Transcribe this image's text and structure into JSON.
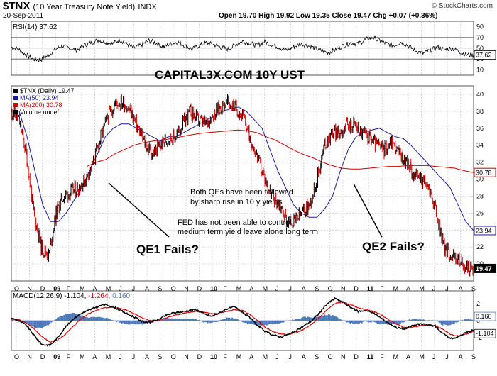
{
  "header": {
    "symbol": "$TNX",
    "description": "(10 Year Treasury Note Yield)",
    "exchange": "INDX",
    "date": "20-Sep-2011",
    "ohlc": "Open 19.70  High 19.92  Low 19.35  Close 19.47  Chg +0.07 (+0.36%)",
    "copyright": "© StockCharts.com"
  },
  "colors": {
    "price": "#000000",
    "up_bar": "#000000",
    "down_bar": "#dd0000",
    "ma50": "#1a1a9a",
    "ma200": "#cc0000",
    "macd": "#000000",
    "signal": "#dd0000",
    "histogram": "#4a78b8",
    "grid": "#c8c8d8",
    "price_label_bg": "#000000",
    "ma50_label_border": "#1a1a9a",
    "ma200_label_border": "#cc0000"
  },
  "chart_data": [
    {
      "type": "line",
      "panel": "RSI",
      "title": "RSI(14) 37.62",
      "ylim": [
        0,
        100
      ],
      "yticks": [
        10,
        30,
        50,
        70,
        90
      ],
      "reference_lines": [
        30,
        70
      ],
      "current_value": "37.62",
      "series": [
        {
          "name": "RSI(14)",
          "values": [
            52,
            48,
            38,
            30,
            28,
            36,
            47,
            55,
            50,
            46,
            55,
            60,
            65,
            62,
            58,
            66,
            58,
            50,
            56,
            64,
            60,
            52,
            58,
            62,
            55,
            48,
            55,
            60,
            57,
            52,
            48,
            56,
            63,
            60,
            55,
            62,
            57,
            52,
            46,
            52,
            58,
            55,
            50,
            45,
            42,
            48,
            55,
            60,
            58,
            66,
            70,
            64,
            58,
            55,
            62,
            54,
            45,
            40,
            46,
            52,
            47,
            50,
            44,
            38,
            37
          ]
        }
      ]
    },
    {
      "type": "line",
      "panel": "price",
      "title": "$TNX (Daily) 19.47",
      "watermark": "CAPITAL3X.COM 10Y UST",
      "ylim": [
        18,
        41
      ],
      "yticks": [
        20,
        22,
        24,
        26,
        28,
        30,
        32,
        34,
        36,
        38,
        40
      ],
      "x_tick_labels": [
        "O",
        "N",
        "D",
        "09",
        "F",
        "M",
        "A",
        "M",
        "J",
        "J",
        "A",
        "S",
        "O",
        "N",
        "D",
        "10",
        "F",
        "M",
        "A",
        "M",
        "J",
        "J",
        "A",
        "S",
        "O",
        "N",
        "D",
        "11",
        "F",
        "M",
        "A",
        "M",
        "J",
        "J",
        "A",
        "S"
      ],
      "series": [
        {
          "name": "$TNX (Daily) 19.47",
          "values": [
            38,
            37,
            33,
            26,
            22,
            21,
            26,
            28,
            28.5,
            29,
            30,
            32,
            35,
            37.5,
            39,
            39,
            38,
            36,
            34,
            33,
            34,
            34.8,
            35,
            36.5,
            38,
            37,
            36.5,
            37.5,
            38.5,
            39,
            38.5,
            37.5,
            35,
            32.5,
            30,
            28,
            27,
            25,
            25,
            26,
            27,
            30,
            34,
            35.5,
            35.5,
            36.3,
            36.5,
            35.5,
            35,
            34,
            33.5,
            34.5,
            33,
            32,
            30.5,
            30,
            29,
            26,
            22,
            21,
            20.5,
            19.5,
            19.47
          ]
        },
        {
          "name": "MA(50) 23.94",
          "values": [
            null,
            38,
            35,
            31,
            27,
            25,
            25,
            26,
            27.5,
            29,
            31,
            33,
            35,
            36,
            36.5,
            36.5,
            36,
            35.5,
            35,
            34.5,
            35,
            35,
            35.5,
            36,
            36.5,
            37,
            37.5,
            38,
            38.3,
            38.5,
            38,
            37,
            36,
            33.5,
            31,
            29,
            27,
            26,
            25.5,
            25.5,
            26.5,
            28,
            31,
            33.5,
            35,
            35.5,
            35.8,
            36,
            35.5,
            35,
            34.8,
            34,
            33,
            32,
            31,
            30,
            29,
            27,
            25,
            23.94
          ]
        },
        {
          "name": "MA(200) 30.78",
          "values": [
            null,
            null,
            null,
            null,
            null,
            null,
            null,
            null,
            31.5,
            32,
            32.3,
            33,
            33.5,
            34,
            34.3,
            34.5,
            34.6,
            34.8,
            35,
            35.2,
            35.4,
            35.5,
            35.6,
            35.7,
            35.8,
            35.7,
            35.5,
            35,
            34.6,
            34,
            33.4,
            32.9,
            32.5,
            32,
            31.6,
            31.3,
            31.2,
            31.2,
            31.3,
            31.4,
            31.5,
            31.5,
            31.6,
            31.6,
            31.6,
            31.5,
            31.4,
            31.3,
            31,
            30.78
          ]
        }
      ],
      "legend": [
        "$TNX (Daily) 19.47",
        "MA(50) 23.94",
        "MA(200) 30.78",
        "Volume undef"
      ],
      "value_labels": [
        "30.78",
        "23.94",
        "19.47"
      ],
      "annotations": [
        {
          "text": "Both QEs have been followed"
        },
        {
          "text": "by sharp rise in 10 y yields"
        },
        {
          "text": "FED has not been able to control"
        },
        {
          "text": "medium term yield leave alone long term"
        },
        {
          "text": "QE1 Fails?"
        },
        {
          "text": "QE2 Fails?"
        }
      ]
    },
    {
      "type": "line",
      "panel": "MACD",
      "title": "MACD(12,26,9) -1.104, -1.264, 0.160",
      "ylim": [
        -3.5,
        3.5
      ],
      "yticks": [
        -2,
        0,
        2
      ],
      "value_labels": [
        "0.160",
        "-1.104"
      ],
      "x_tick_labels": [
        "O",
        "N",
        "D",
        "09",
        "F",
        "M",
        "A",
        "M",
        "J",
        "J",
        "A",
        "S",
        "O",
        "N",
        "D",
        "10",
        "F",
        "M",
        "A",
        "M",
        "J",
        "J",
        "A",
        "S",
        "O",
        "N",
        "D",
        "11",
        "F",
        "M",
        "A",
        "M",
        "J",
        "J",
        "A",
        "S"
      ],
      "series": [
        {
          "name": "MACD",
          "values": [
            0.3,
            0,
            -0.6,
            -1.8,
            -2.8,
            -2.9,
            -2,
            -0.8,
            0.2,
            0.8,
            1.2,
            1.6,
            1.9,
            1.7,
            1.3,
            0.8,
            0.4,
            -0.1,
            -0.2,
            0.1,
            0.6,
            0.9,
            1,
            1.2,
            1.3,
            0.8,
            0.5,
            0.9,
            1.4,
            1.6,
            1,
            0.3,
            -0.6,
            -1.3,
            -1.7,
            -1.9,
            -1.6,
            -1.2,
            -0.6,
            0,
            0.9,
            2,
            2.6,
            2.2,
            1.6,
            1.1,
            1.2,
            0.9,
            0.3,
            -0.3,
            -0.8,
            -1,
            -0.6,
            -0.4,
            -0.5,
            -0.6,
            -1.5,
            -2.1,
            -1.9,
            -1.4,
            -1.104
          ]
        },
        {
          "name": "Signal",
          "values": [
            0.2,
            0.1,
            -0.3,
            -1,
            -1.9,
            -2.5,
            -2.3,
            -1.6,
            -0.7,
            0.2,
            0.8,
            1.2,
            1.5,
            1.6,
            1.5,
            1.2,
            0.8,
            0.3,
            0,
            0,
            0.3,
            0.6,
            0.8,
            1,
            1.1,
            1,
            0.8,
            0.9,
            1.1,
            1.3,
            1.2,
            0.7,
            0,
            -0.8,
            -1.3,
            -1.6,
            -1.6,
            -1.4,
            -1,
            -0.4,
            0.4,
            1.3,
            2,
            2.2,
            1.9,
            1.5,
            1.3,
            1.1,
            0.7,
            0.1,
            -0.4,
            -0.8,
            -0.8,
            -0.6,
            -0.5,
            -0.6,
            -1,
            -1.6,
            -1.8,
            -1.6,
            -1.264
          ]
        }
      ],
      "histogram": [
        0.1,
        -0.1,
        -0.3,
        -0.8,
        -0.9,
        -0.4,
        0.3,
        0.8,
        0.9,
        0.6,
        0.4,
        0.4,
        0.4,
        0.1,
        -0.2,
        -0.4,
        -0.4,
        -0.4,
        -0.2,
        0.1,
        0.3,
        0.3,
        0.2,
        0.2,
        0.2,
        -0.2,
        -0.3,
        0,
        0.3,
        0.3,
        -0.2,
        -0.4,
        -0.6,
        -0.5,
        -0.4,
        -0.3,
        0,
        0.2,
        0.4,
        0.4,
        0.5,
        0.7,
        0.6,
        0,
        -0.3,
        -0.4,
        -0.1,
        -0.2,
        -0.4,
        -0.4,
        -0.4,
        -0.2,
        0.2,
        0.2,
        0,
        0,
        -0.5,
        -0.5,
        -0.1,
        0.2,
        0.16
      ]
    }
  ]
}
